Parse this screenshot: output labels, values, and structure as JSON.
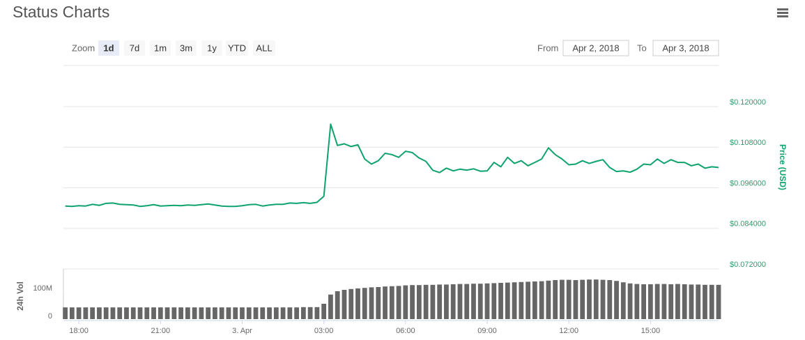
{
  "chart_data": {
    "type": "line",
    "title": "Status Charts",
    "x": [
      "2018-04-02T17:30",
      "2018-04-02T17:45",
      "2018-04-02T18:00",
      "2018-04-02T18:15",
      "2018-04-02T18:30",
      "2018-04-02T18:45",
      "2018-04-02T19:00",
      "2018-04-02T19:15",
      "2018-04-02T19:30",
      "2018-04-02T19:45",
      "2018-04-02T20:00",
      "2018-04-02T20:15",
      "2018-04-02T20:30",
      "2018-04-02T20:45",
      "2018-04-02T21:00",
      "2018-04-02T21:15",
      "2018-04-02T21:30",
      "2018-04-02T21:45",
      "2018-04-02T22:00",
      "2018-04-02T22:15",
      "2018-04-02T22:30",
      "2018-04-02T22:45",
      "2018-04-02T23:00",
      "2018-04-02T23:15",
      "2018-04-02T23:30",
      "2018-04-02T23:45",
      "2018-04-03T00:00",
      "2018-04-03T00:15",
      "2018-04-03T00:30",
      "2018-04-03T00:45",
      "2018-04-03T01:00",
      "2018-04-03T01:15",
      "2018-04-03T01:30",
      "2018-04-03T01:45",
      "2018-04-03T02:00",
      "2018-04-03T02:15",
      "2018-04-03T02:30",
      "2018-04-03T02:45",
      "2018-04-03T03:00",
      "2018-04-03T03:15",
      "2018-04-03T03:30",
      "2018-04-03T03:45",
      "2018-04-03T04:00",
      "2018-04-03T04:15",
      "2018-04-03T04:30",
      "2018-04-03T04:45",
      "2018-04-03T05:00",
      "2018-04-03T05:15",
      "2018-04-03T05:30",
      "2018-04-03T05:45",
      "2018-04-03T06:00",
      "2018-04-03T06:15",
      "2018-04-03T06:30",
      "2018-04-03T06:45",
      "2018-04-03T07:00",
      "2018-04-03T07:15",
      "2018-04-03T07:30",
      "2018-04-03T07:45",
      "2018-04-03T08:00",
      "2018-04-03T08:15",
      "2018-04-03T08:30",
      "2018-04-03T08:45",
      "2018-04-03T09:00",
      "2018-04-03T09:15",
      "2018-04-03T09:30",
      "2018-04-03T09:45",
      "2018-04-03T10:00",
      "2018-04-03T10:15",
      "2018-04-03T10:30",
      "2018-04-03T10:45",
      "2018-04-03T11:00",
      "2018-04-03T11:15",
      "2018-04-03T11:30",
      "2018-04-03T11:45",
      "2018-04-03T12:00",
      "2018-04-03T12:15",
      "2018-04-03T12:30",
      "2018-04-03T12:45",
      "2018-04-03T13:00",
      "2018-04-03T13:15",
      "2018-04-03T13:30",
      "2018-04-03T13:45",
      "2018-04-03T14:00",
      "2018-04-03T14:15",
      "2018-04-03T14:30",
      "2018-04-03T14:45",
      "2018-04-03T15:00",
      "2018-04-03T15:15",
      "2018-04-03T15:30",
      "2018-04-03T15:45",
      "2018-04-03T16:00",
      "2018-04-03T16:15",
      "2018-04-03T16:30",
      "2018-04-03T16:45",
      "2018-04-03T17:00",
      "2018-04-03T17:15",
      "2018-04-03T17:30"
    ],
    "xlim": [
      "2018-04-02T17:26",
      "2018-04-03T17:30"
    ],
    "xticks": [
      "2018-04-02T18:00",
      "2018-04-02T21:00",
      "2018-04-03T00:00",
      "2018-04-03T03:00",
      "2018-04-03T06:00",
      "2018-04-03T09:00",
      "2018-04-03T12:00",
      "2018-04-03T15:00"
    ],
    "xtick_labels": [
      "18:00",
      "21:00",
      "3. Apr",
      "03:00",
      "06:00",
      "09:00",
      "12:00",
      "15:00"
    ],
    "ylabel": "Price (USD)",
    "ylim": [
      0.072,
      0.132
    ],
    "yticks": [
      {
        "value": 0.072,
        "label": "$0.072000"
      },
      {
        "value": 0.084,
        "label": "$0.084000"
      },
      {
        "value": 0.096,
        "label": "$0.096000"
      },
      {
        "value": 0.108,
        "label": "$0.108000"
      },
      {
        "value": 0.12,
        "label": "$0.120000"
      }
    ],
    "y2label": "24h Vol",
    "y2lim": [
      0,
      180000000
    ],
    "y2ticks": [
      0,
      {
        "value": 100000000,
        "label": "100M"
      }
    ],
    "grid": true,
    "series": [
      {
        "type": "line",
        "color": "#0ea36c",
        "values": [
          0.0906,
          0.0905,
          0.0907,
          0.0906,
          0.0911,
          0.0908,
          0.0914,
          0.0915,
          0.0911,
          0.091,
          0.0909,
          0.0905,
          0.0907,
          0.091,
          0.0906,
          0.0907,
          0.0908,
          0.0907,
          0.0909,
          0.0908,
          0.091,
          0.0912,
          0.0909,
          0.0906,
          0.0905,
          0.0905,
          0.0907,
          0.091,
          0.0911,
          0.0906,
          0.0909,
          0.0911,
          0.0911,
          0.0915,
          0.0914,
          0.0916,
          0.0914,
          0.0917,
          0.0935,
          0.1148,
          0.1085,
          0.109,
          0.1082,
          0.1087,
          0.1045,
          0.103,
          0.104,
          0.1062,
          0.1058,
          0.105,
          0.1068,
          0.1064,
          0.1048,
          0.1038,
          0.1012,
          0.1005,
          0.1018,
          0.101,
          0.1015,
          0.1012,
          0.1016,
          0.1009,
          0.101,
          0.1035,
          0.1022,
          0.105,
          0.1032,
          0.104,
          0.1025,
          0.1035,
          0.1045,
          0.1078,
          0.1058,
          0.1045,
          0.1028,
          0.103,
          0.104,
          0.1032,
          0.1038,
          0.1043,
          0.102,
          0.1008,
          0.101,
          0.1006,
          0.1015,
          0.103,
          0.1028,
          0.1045,
          0.1032,
          0.1043,
          0.1035,
          0.1035,
          0.1025,
          0.103,
          0.1018,
          0.1022,
          0.102
        ]
      },
      {
        "type": "bar",
        "axis": "y2",
        "color": "#666666",
        "values": [
          42000000,
          42000000,
          42000000,
          42000000,
          42000000,
          42000000,
          42000000,
          42000000,
          42000000,
          42000000,
          42000000,
          42000000,
          42000000,
          42000000,
          42000000,
          42000000,
          42000000,
          42000000,
          42000000,
          42000000,
          42000000,
          42000000,
          42000000,
          42000000,
          42000000,
          42000000,
          42000000,
          42000000,
          42000000,
          42000000,
          42000000,
          42000000,
          42000000,
          42000000,
          42000000,
          43000000,
          43000000,
          43000000,
          55000000,
          88000000,
          100000000,
          105000000,
          108000000,
          110000000,
          112000000,
          114000000,
          115000000,
          117000000,
          118000000,
          119000000,
          121000000,
          122000000,
          122000000,
          123000000,
          123000000,
          124000000,
          124000000,
          125000000,
          126000000,
          126000000,
          127000000,
          127000000,
          128000000,
          129000000,
          130000000,
          131000000,
          132000000,
          133000000,
          134000000,
          135000000,
          136000000,
          138000000,
          140000000,
          141000000,
          141000000,
          140000000,
          141000000,
          142000000,
          142000000,
          141000000,
          140000000,
          137000000,
          132000000,
          128000000,
          126000000,
          125000000,
          125000000,
          126000000,
          126000000,
          125000000,
          126000000,
          125000000,
          124000000,
          124000000,
          123000000,
          123000000,
          123000000
        ]
      }
    ]
  },
  "controls": {
    "zoom_label": "Zoom",
    "zoom_buttons": [
      "1d",
      "7d",
      "1m",
      "3m",
      "1y",
      "YTD",
      "ALL"
    ],
    "selected_zoom_index": 0,
    "from_label": "From",
    "from": "Apr 2, 2018",
    "to_label": "To",
    "to": "Apr 3, 2018"
  }
}
